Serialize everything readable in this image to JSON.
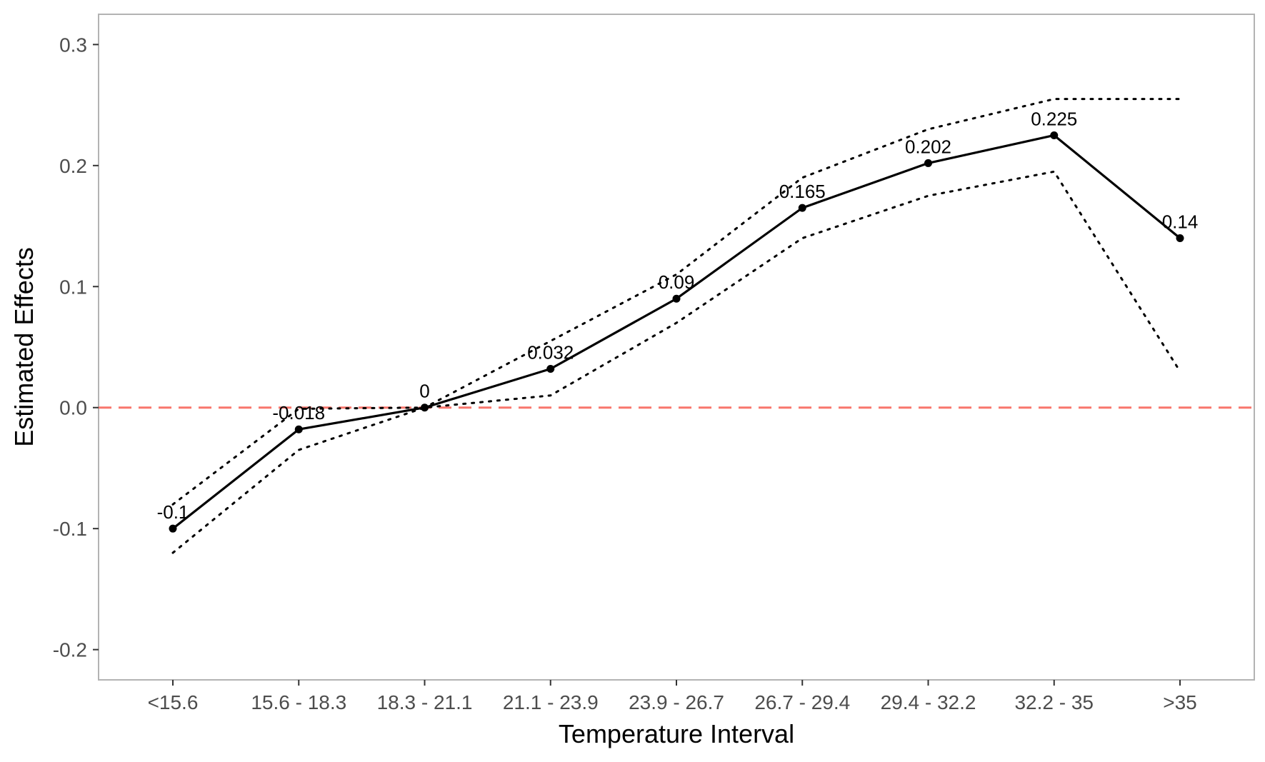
{
  "chart_data": {
    "type": "line",
    "xlabel": "Temperature Interval",
    "ylabel": "Estimated Effects",
    "categories": [
      "<15.6",
      "15.6 - 18.3",
      "18.3 - 21.1",
      "21.1 - 23.9",
      "23.9 - 26.7",
      "26.7 - 29.4",
      "29.4 - 32.2",
      "32.2 - 35",
      ">35"
    ],
    "series": [
      {
        "values": [
          -0.1,
          -0.018,
          0,
          0.032,
          0.09,
          0.165,
          0.202,
          0.225,
          0.14
        ]
      }
    ],
    "upper_bound": [
      -0.08,
      -0.001,
      0,
      0.055,
      0.11,
      0.19,
      0.23,
      0.255,
      0.255
    ],
    "lower_bound": [
      -0.12,
      -0.035,
      0,
      0.01,
      0.07,
      0.14,
      0.175,
      0.195,
      0.03
    ],
    "data_labels": [
      "-0.1",
      "-0.018",
      "0",
      "0.032",
      "0.09",
      "0.165",
      "0.202",
      "0.225",
      "0.14"
    ],
    "ylim": [
      -0.225,
      0.325
    ],
    "yticks": [
      -0.2,
      -0.1,
      0.0,
      0.1,
      0.2,
      0.3
    ],
    "ytick_labels": [
      "-0.2",
      "-0.1",
      "0.0",
      "0.1",
      "0.2",
      "0.3"
    ],
    "reference_line": {
      "y": 0,
      "style": "dashed",
      "color": "#f8766d"
    },
    "colors": {
      "line": "#000000",
      "bounds": "#000000",
      "frame": "#b3b3b3"
    },
    "grid": false
  }
}
